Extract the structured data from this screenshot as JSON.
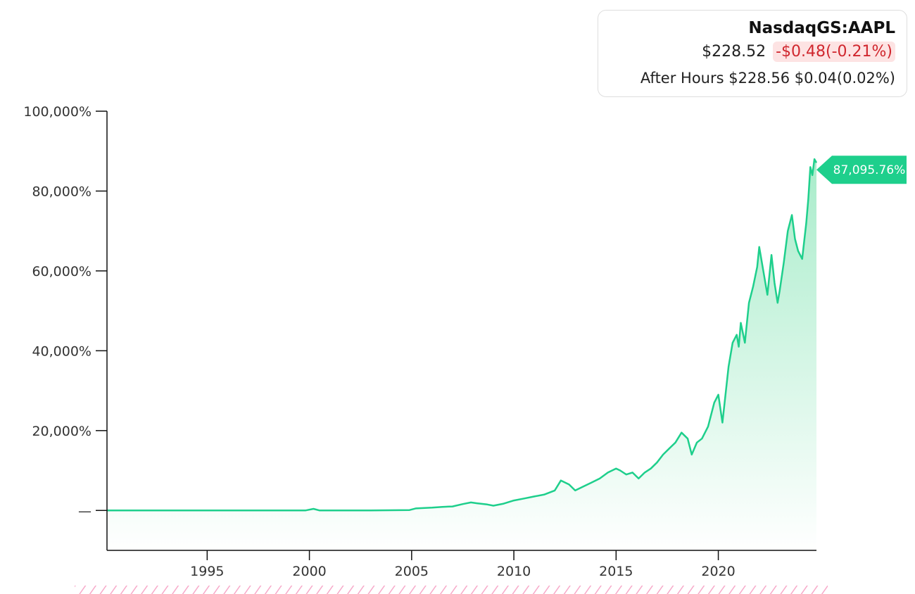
{
  "quote": {
    "ticker": "NasdaqGS:AAPL",
    "price": "$228.52",
    "change": "-$0.48(-0.21%)",
    "after_hours_label": "After Hours",
    "after_hours_price": "$228.56",
    "after_hours_change": "$0.04(0.02%)"
  },
  "colors": {
    "line": "#1ecf8c",
    "fill_top": "#a8ecca",
    "fill_bottom": "#ffffff",
    "negative": "#d0272e",
    "negative_bg": "#fde3e3",
    "hatch": "#f7a9c9"
  },
  "chart_data": {
    "type": "area",
    "title": "",
    "xlabel": "",
    "ylabel": "",
    "xlim": [
      1990.1,
      2024.8
    ],
    "ylim": [
      -10000,
      100000
    ],
    "x_ticks": [
      1995,
      2000,
      2005,
      2010,
      2015,
      2020
    ],
    "y_ticks": [
      {
        "value": 100000,
        "label": "100,000%"
      },
      {
        "value": 80000,
        "label": "80,000%"
      },
      {
        "value": 60000,
        "label": "60,000%"
      },
      {
        "value": 40000,
        "label": "40,000%"
      },
      {
        "value": 20000,
        "label": "20,000%"
      },
      {
        "value": 0,
        "label": "—"
      }
    ],
    "last_value_label": "87,095.76%",
    "series": [
      {
        "x": [
          1990.1,
          1995,
          1999.8,
          2000.2,
          2000.5,
          2003,
          2004.9,
          2005.2,
          2006,
          2006.5,
          2007,
          2007.5,
          2007.9,
          2008.2,
          2008.7,
          2009,
          2009.5,
          2010,
          2010.5,
          2011,
          2011.5,
          2012,
          2012.3,
          2012.7,
          2013,
          2013.4,
          2013.8,
          2014.2,
          2014.6,
          2015,
          2015.2,
          2015.5,
          2015.8,
          2016.1,
          2016.4,
          2016.7,
          2017,
          2017.3,
          2017.6,
          2017.9,
          2018.2,
          2018.5,
          2018.7,
          2018.95,
          2019.2,
          2019.5,
          2019.8,
          2020.0,
          2020.2,
          2020.5,
          2020.7,
          2020.9,
          2021.0,
          2021.1,
          2021.3,
          2021.5,
          2021.7,
          2021.9,
          2022.0,
          2022.2,
          2022.4,
          2022.6,
          2022.75,
          2022.9,
          2023.0,
          2023.2,
          2023.4,
          2023.6,
          2023.75,
          2023.9,
          2024.1,
          2024.3,
          2024.4,
          2024.5,
          2024.6,
          2024.7,
          2024.8
        ],
        "values": [
          0,
          0,
          0,
          400,
          0,
          0,
          100,
          500,
          700,
          900,
          1000,
          1600,
          2000,
          1800,
          1500,
          1200,
          1700,
          2500,
          3000,
          3500,
          4000,
          5000,
          7500,
          6500,
          5000,
          6000,
          7000,
          8000,
          9500,
          10500,
          10000,
          9000,
          9500,
          8000,
          9500,
          10500,
          12000,
          14000,
          15500,
          17000,
          19500,
          18000,
          14000,
          17000,
          18000,
          21000,
          27000,
          29000,
          22000,
          36000,
          42000,
          44000,
          41000,
          47000,
          42000,
          52000,
          56000,
          61000,
          66000,
          60000,
          54000,
          64000,
          57000,
          52000,
          55000,
          62000,
          70000,
          74000,
          68000,
          65000,
          63000,
          72000,
          78000,
          86000,
          84000,
          88000,
          87096
        ]
      }
    ]
  }
}
